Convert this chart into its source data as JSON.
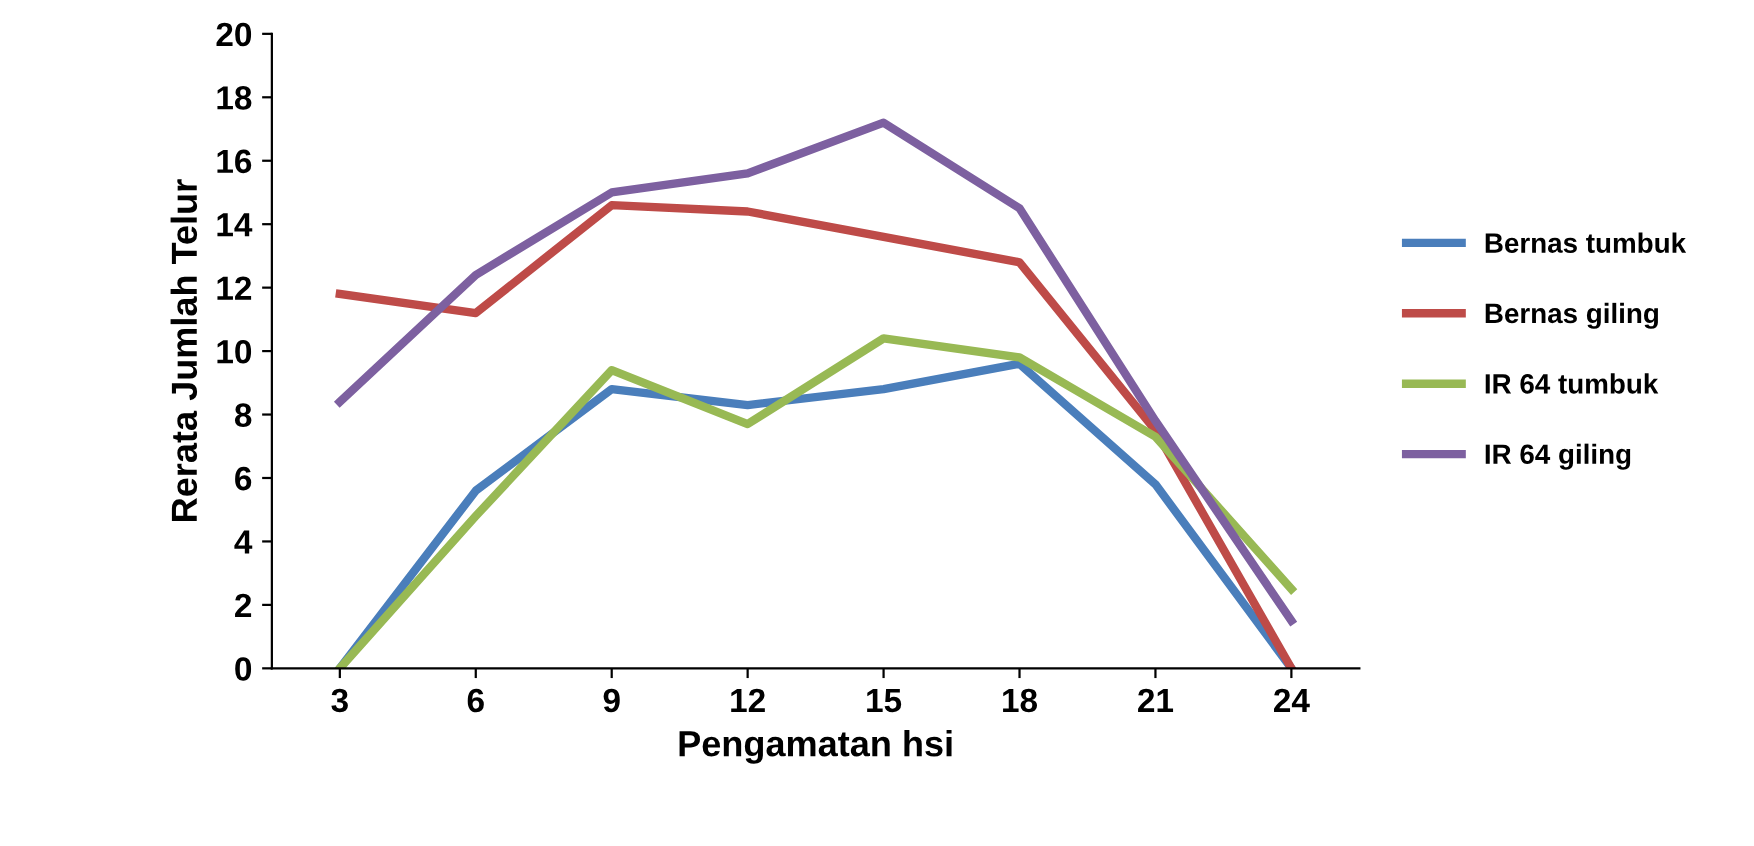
{
  "chart_data": {
    "type": "line",
    "xlabel": "Pengamatan hsi",
    "ylabel": "Rerata Jumlah Telur",
    "categories": [
      "3",
      "6",
      "9",
      "12",
      "15",
      "18",
      "21",
      "24"
    ],
    "series": [
      {
        "name": "Bernas tumbuk",
        "color": "#4a7ebb",
        "values": [
          0,
          5.6,
          8.8,
          8.3,
          8.8,
          9.6,
          5.8,
          0
        ]
      },
      {
        "name": "Bernas giling",
        "color": "#be4b48",
        "values": [
          11.8,
          11.2,
          14.6,
          14.4,
          13.6,
          12.8,
          7.5,
          0
        ]
      },
      {
        "name": "IR 64 tumbuk",
        "color": "#98b954",
        "values": [
          0,
          4.8,
          9.4,
          7.7,
          10.4,
          9.8,
          7.3,
          2.5
        ]
      },
      {
        "name": "IR 64 giling",
        "color": "#7d60a0",
        "values": [
          8.4,
          12.4,
          15.0,
          15.6,
          17.2,
          14.5,
          7.8,
          1.5
        ]
      }
    ],
    "ylim": [
      0,
      20
    ],
    "yticks": [
      0,
      2,
      4,
      6,
      8,
      10,
      12,
      14,
      16,
      18,
      20
    ],
    "grid": false,
    "legend": "right",
    "marker": "none",
    "line_style": "solid"
  }
}
